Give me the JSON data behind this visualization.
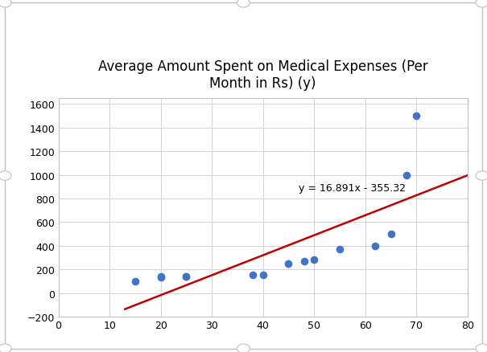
{
  "title": "Average Amount Spent on Medical Expenses (Per\nMonth in Rs) (y)",
  "x_data": [
    15,
    20,
    20,
    25,
    25,
    38,
    40,
    45,
    48,
    50,
    55,
    62,
    65,
    68,
    70
  ],
  "y_data": [
    100,
    135,
    140,
    140,
    140,
    155,
    155,
    250,
    270,
    285,
    375,
    400,
    500,
    1000,
    1500
  ],
  "xlim": [
    0,
    80
  ],
  "ylim": [
    -200,
    1650
  ],
  "xticks": [
    0,
    10,
    20,
    30,
    40,
    50,
    60,
    70,
    80
  ],
  "yticks": [
    -200,
    0,
    200,
    400,
    600,
    800,
    1000,
    1200,
    1400,
    1600
  ],
  "equation": "y = 16.891x - 355.32",
  "eq_x": 47,
  "eq_y": 870,
  "slope": 16.891,
  "intercept": -355.32,
  "line_x_start": 13,
  "line_x_end": 80,
  "dot_color": "#4472c4",
  "line_color": "#c00000",
  "bg_color": "#ffffff",
  "plot_bg_color": "#ffffff",
  "grid_color": "#d3d3d3",
  "outer_border_color": "#c0c0c0",
  "title_fontsize": 12,
  "annotation_fontsize": 9,
  "tick_fontsize": 9,
  "dot_size": 35,
  "line_width": 1.8
}
